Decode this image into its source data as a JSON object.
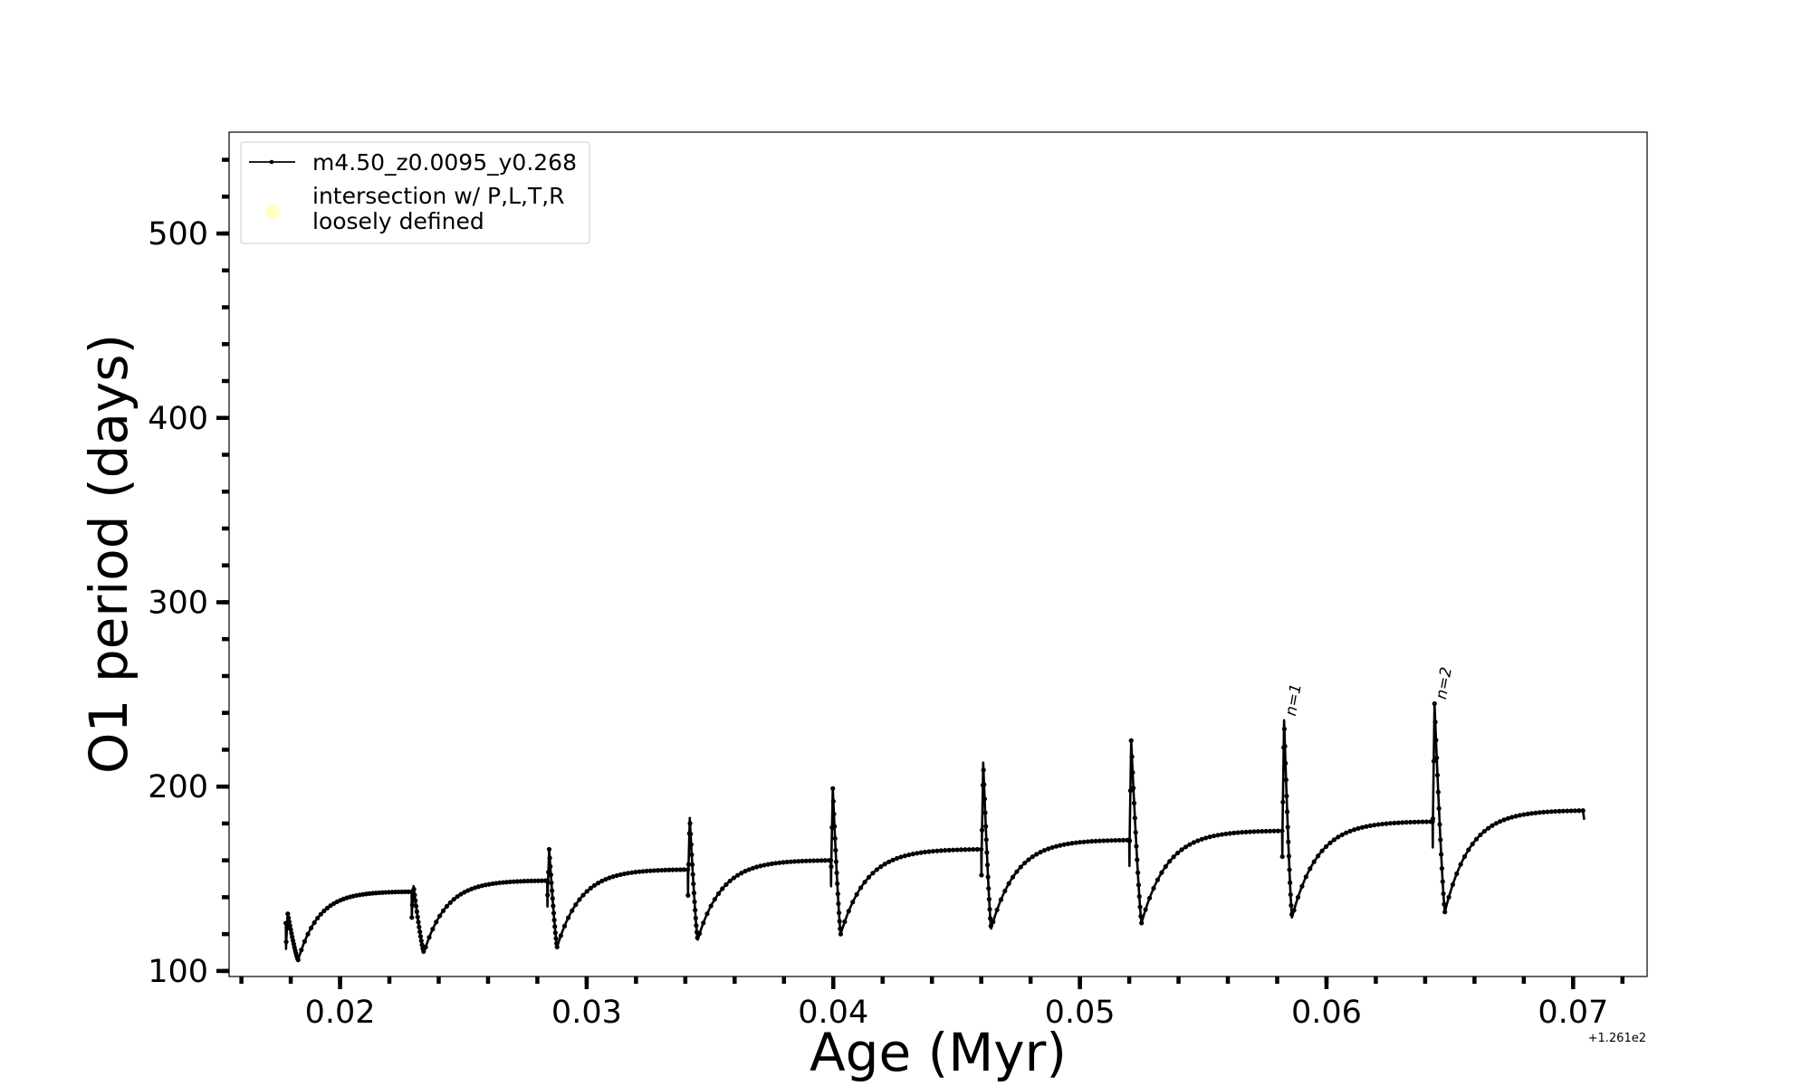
{
  "chart_data": {
    "type": "line",
    "title": "",
    "xlabel": "Age (Myr)",
    "ylabel": "O1 period (days)",
    "x_offset_label": "+1.261e2",
    "xlim": [
      0.0155,
      0.073
    ],
    "ylim": [
      97,
      555
    ],
    "x_ticks": [
      {
        "value": 0.02,
        "label": "0.02"
      },
      {
        "value": 0.03,
        "label": "0.03"
      },
      {
        "value": 0.04,
        "label": "0.04"
      },
      {
        "value": 0.05,
        "label": "0.05"
      },
      {
        "value": 0.06,
        "label": "0.06"
      },
      {
        "value": 0.07,
        "label": "0.07"
      }
    ],
    "y_ticks": [
      {
        "value": 100,
        "label": "100"
      },
      {
        "value": 200,
        "label": "200"
      },
      {
        "value": 300,
        "label": "300"
      },
      {
        "value": 400,
        "label": "400"
      },
      {
        "value": 500,
        "label": "500"
      }
    ],
    "x_minor_step": 0.002,
    "y_minor_step": 20,
    "grid": false,
    "legend_position": "upper-left",
    "series": [
      {
        "name": "m4.50_z0.0095_y0.268",
        "color": "#000000",
        "marker": "dot",
        "cycles": [
          {
            "start": 0.0178,
            "peak": 131,
            "dip": 106,
            "dip_x": 0.0183,
            "plateau": 143,
            "end": 0.0229
          },
          {
            "start": 0.0229,
            "peak": 146,
            "dip": 110,
            "dip_x": 0.0234,
            "plateau": 149,
            "end": 0.0284
          },
          {
            "start": 0.0284,
            "peak": 166,
            "dip": 113,
            "dip_x": 0.0288,
            "plateau": 155,
            "end": 0.0341
          },
          {
            "start": 0.0341,
            "peak": 183,
            "dip": 117,
            "dip_x": 0.0345,
            "plateau": 160,
            "end": 0.0399
          },
          {
            "start": 0.0399,
            "peak": 199,
            "dip": 120,
            "dip_x": 0.0403,
            "plateau": 166,
            "end": 0.046
          },
          {
            "start": 0.046,
            "peak": 213,
            "dip": 123,
            "dip_x": 0.0464,
            "plateau": 171,
            "end": 0.052
          },
          {
            "start": 0.052,
            "peak": 225,
            "dip": 126,
            "dip_x": 0.0525,
            "plateau": 176,
            "end": 0.0582
          },
          {
            "start": 0.0582,
            "peak": 236,
            "dip": 129,
            "dip_x": 0.0586,
            "plateau": 181,
            "end": 0.0643
          },
          {
            "start": 0.0643,
            "peak": 245,
            "dip": 132,
            "dip_x": 0.0648,
            "plateau": 187,
            "end": 0.0704
          }
        ],
        "end_value": 182
      },
      {
        "name": "intersection w/ P,L,T,R loosely defined",
        "color": "#ffffc0",
        "marker": "circle",
        "points": []
      }
    ],
    "annotations": [
      {
        "text": "n=1",
        "x": 0.0583,
        "y": 236
      },
      {
        "text": "n=2",
        "x": 0.0644,
        "y": 245
      }
    ]
  }
}
